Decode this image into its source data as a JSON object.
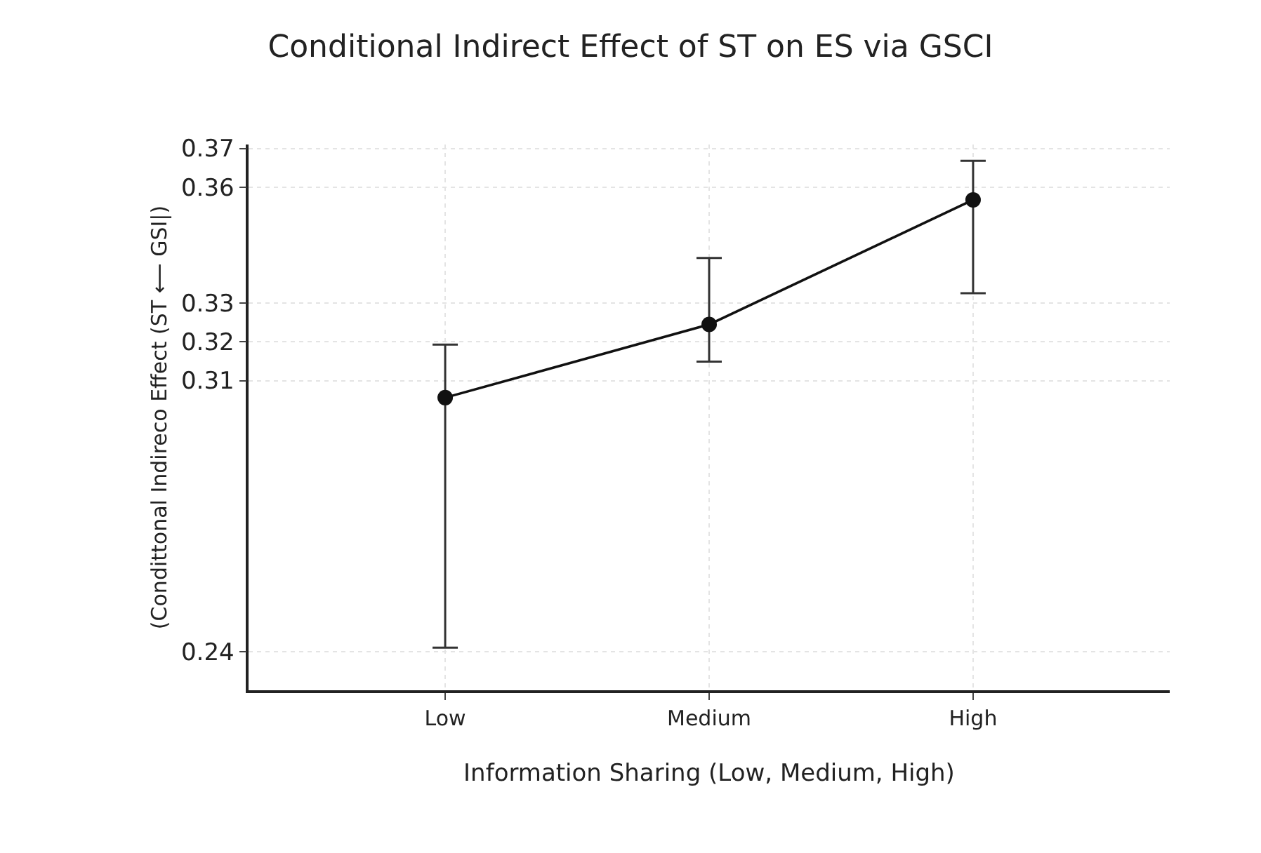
{
  "chart_data": {
    "type": "line",
    "title": "Conditional Indirect Effect of ST on ES via GSCI",
    "xlabel": "Information Sharing (Low, Medium, High)",
    "ylabel": "(Condittonal Indireco Effect (ST ⟵ GSI|)",
    "categories": [
      "Low",
      "Medium",
      "High"
    ],
    "series": [
      {
        "color": "#111111",
        "values": [
          0.3056,
          0.3245,
          0.3567
        ],
        "errors": [
          [
            0.241,
            0.3193
          ],
          [
            0.3149,
            0.3417
          ],
          [
            0.3326,
            0.3668
          ]
        ]
      }
    ],
    "ylim": [
      0.23,
      0.371
    ],
    "yticks": [
      0.24,
      0.31,
      0.32,
      0.33,
      0.36,
      0.37
    ],
    "grid": true,
    "marker": "circle",
    "line_style": "solid"
  }
}
